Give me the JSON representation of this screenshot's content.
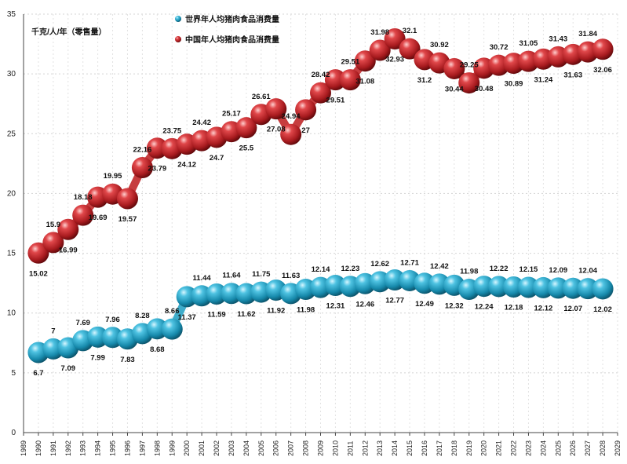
{
  "chart_data": {
    "type": "line",
    "ylabel": "千克/人/年（零售量）",
    "ylim": [
      0,
      35
    ],
    "yticks": [
      0,
      5,
      10,
      15,
      20,
      25,
      30,
      35
    ],
    "xlim": [
      1989,
      2029
    ],
    "xticks": [
      1989,
      1990,
      1991,
      1992,
      1993,
      1994,
      1995,
      1996,
      1997,
      1998,
      1999,
      2000,
      2001,
      2002,
      2003,
      2004,
      2005,
      2006,
      2007,
      2008,
      2009,
      2010,
      2011,
      2012,
      2013,
      2014,
      2015,
      2016,
      2017,
      2018,
      2019,
      2020,
      2021,
      2022,
      2023,
      2024,
      2025,
      2026,
      2027,
      2028,
      2029
    ],
    "grid": true,
    "legend_position": "top-center",
    "series": [
      {
        "name": "世界年人均猪肉食品消费量",
        "color": "#2aa3c4",
        "x": [
          1990,
          1991,
          1992,
          1993,
          1994,
          1995,
          1996,
          1997,
          1998,
          1999,
          2000,
          2001,
          2002,
          2003,
          2004,
          2005,
          2006,
          2007,
          2008,
          2009,
          2010,
          2011,
          2012,
          2013,
          2014,
          2015,
          2016,
          2017,
          2018,
          2019,
          2020,
          2021,
          2022,
          2023,
          2024,
          2025,
          2026,
          2027,
          2028
        ],
        "values": [
          6.7,
          7,
          7.09,
          7.69,
          7.99,
          7.96,
          7.83,
          8.28,
          8.68,
          8.66,
          11.37,
          11.44,
          11.59,
          11.64,
          11.62,
          11.75,
          11.92,
          11.63,
          11.98,
          12.14,
          12.31,
          12.23,
          12.46,
          12.62,
          12.77,
          12.71,
          12.49,
          12.42,
          12.32,
          11.98,
          12.24,
          12.22,
          12.18,
          12.15,
          12.12,
          12.09,
          12.07,
          12.04,
          12.02
        ]
      },
      {
        "name": "中国年人均猪肉食品消费量",
        "color": "#c0282a",
        "x": [
          1990,
          1991,
          1992,
          1993,
          1994,
          1995,
          1996,
          1997,
          1998,
          1999,
          2000,
          2001,
          2002,
          2003,
          2004,
          2005,
          2006,
          2007,
          2008,
          2009,
          2010,
          2011,
          2012,
          2013,
          2014,
          2015,
          2016,
          2017,
          2018,
          2019,
          2020,
          2021,
          2022,
          2023,
          2024,
          2025,
          2026,
          2027,
          2028
        ],
        "values": [
          15.02,
          15.9,
          16.99,
          18.18,
          19.69,
          19.95,
          19.57,
          22.16,
          23.79,
          23.75,
          24.12,
          24.42,
          24.7,
          25.17,
          25.5,
          26.61,
          27.08,
          24.94,
          27,
          28.42,
          29.51,
          29.51,
          31.08,
          31.98,
          32.93,
          32.1,
          31.2,
          30.92,
          30.44,
          29.25,
          30.48,
          30.72,
          30.89,
          31.05,
          31.24,
          31.43,
          31.63,
          31.84,
          32.06
        ]
      }
    ],
    "data_labels": {
      "world": [
        "6.7",
        "7",
        "7.09",
        "7.69",
        "7.99",
        "7.96",
        "7.83",
        "8.28",
        "8.68",
        "8.66",
        "11.37",
        "11.44",
        "11.59",
        "11.64",
        "11.62",
        "11.75",
        "11.92",
        "11.63",
        "11.98",
        "12.14",
        "12.31",
        "12.23",
        "12.46",
        "12.62",
        "12.77",
        "12.71",
        "12.49",
        "12.42",
        "12.32",
        "11.98",
        "12.24",
        "12.22",
        "12.18",
        "12.15",
        "12.12",
        "12.09",
        "12.07",
        "12.04",
        "12.02"
      ],
      "china": [
        "15.02",
        "15.9",
        "16.99",
        "18.18",
        "19.69",
        "19.95",
        "19.57",
        "22.16",
        "23.79",
        "23.75",
        "24.12",
        "24.42",
        "24.7",
        "25.17",
        "25.5",
        "26.61",
        "27.08",
        "24.94",
        "27",
        "28.42",
        "29.51",
        "29.51",
        "31.08",
        "31.98",
        "32.93",
        "32.1",
        "31.2",
        "30.92",
        "30.44",
        "29.25",
        "30.48",
        "30.72",
        "30.89",
        "31.05",
        "31.24",
        "31.43",
        "31.63",
        "31.84",
        "32.06"
      ]
    }
  }
}
